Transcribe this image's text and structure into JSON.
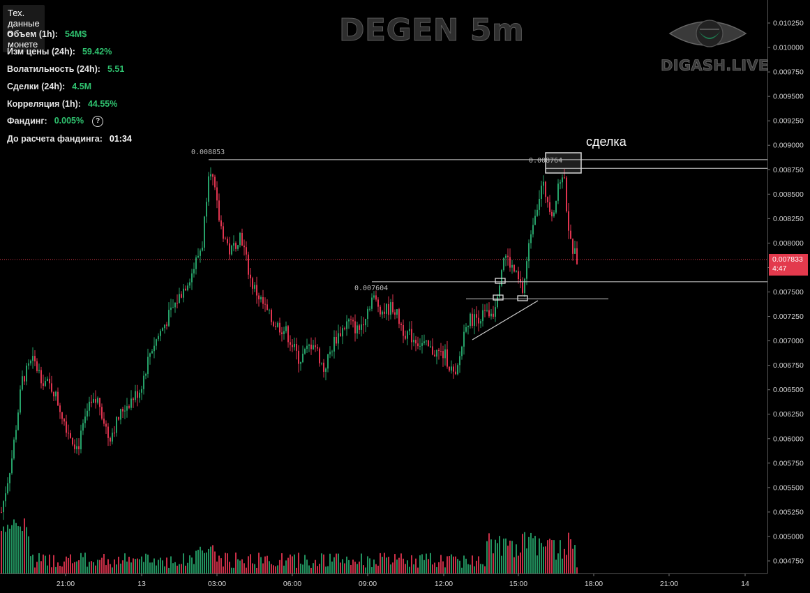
{
  "info_panel": {
    "header": "Тех. данные о монете",
    "rows": [
      {
        "label": "Объем (1h):",
        "value": "54M$"
      },
      {
        "label": "Изм цены  (24h):",
        "value": "59.42%"
      },
      {
        "label": "Волатильность  (24h):",
        "value": "5.51"
      },
      {
        "label": "Сделки (24h):",
        "value": "4.5M"
      },
      {
        "label": "Корреляция (1h):",
        "value": "44.55%"
      },
      {
        "label": "Фандинг:",
        "value": "0.005%"
      },
      {
        "label": "До расчета фандинга:",
        "value": "01:34"
      }
    ],
    "help_icon": "?"
  },
  "title": "DEGEN 5m",
  "brand": {
    "name": "DIGASH.LIVE",
    "logo_icon": "eye-icon"
  },
  "annotations": {
    "deal_label": "сделка",
    "high_label": "0.008853",
    "deal_box_label": "0.008764",
    "pivot_label": "0.007604"
  },
  "current_price": {
    "value": "0.007833",
    "countdown": "4:47"
  },
  "colors": {
    "up": "#26a269",
    "down": "#e0344f",
    "price_tag": "#e33a4d",
    "background": "#000000"
  },
  "chart_data": {
    "type": "candlestick",
    "title": "DEGEN 5m",
    "timeframe": "5m",
    "y_ticks": [
      "0.010250",
      "0.010000",
      "0.009750",
      "0.009500",
      "0.009250",
      "0.009000",
      "0.008750",
      "0.008500",
      "0.008250",
      "0.008000",
      "0.007750",
      "0.007500",
      "0.007250",
      "0.007000",
      "0.006750",
      "0.006500",
      "0.006250",
      "0.006000",
      "0.005750",
      "0.005500",
      "0.005250",
      "0.005000",
      "0.004750"
    ],
    "ylim": [
      0.0046,
      0.0104
    ],
    "x_ticks": [
      "21:00",
      "13",
      "03:00",
      "06:00",
      "09:00",
      "12:00",
      "15:00",
      "18:00",
      "21:00",
      "14"
    ],
    "price_path": [
      [
        0,
        0.00525
      ],
      [
        0.015,
        0.0058
      ],
      [
        0.03,
        0.0066
      ],
      [
        0.045,
        0.0068
      ],
      [
        0.06,
        0.0066
      ],
      [
        0.075,
        0.0065
      ],
      [
        0.095,
        0.0061
      ],
      [
        0.11,
        0.0059
      ],
      [
        0.125,
        0.0063
      ],
      [
        0.14,
        0.0064
      ],
      [
        0.155,
        0.006
      ],
      [
        0.175,
        0.0063
      ],
      [
        0.2,
        0.0065
      ],
      [
        0.215,
        0.0069
      ],
      [
        0.23,
        0.0071
      ],
      [
        0.245,
        0.0073
      ],
      [
        0.26,
        0.0075
      ],
      [
        0.275,
        0.0077
      ],
      [
        0.29,
        0.008
      ],
      [
        0.3,
        0.00885
      ],
      [
        0.315,
        0.0082
      ],
      [
        0.33,
        0.0079
      ],
      [
        0.345,
        0.0081
      ],
      [
        0.36,
        0.0076
      ],
      [
        0.375,
        0.0074
      ],
      [
        0.39,
        0.0072
      ],
      [
        0.41,
        0.0071
      ],
      [
        0.43,
        0.0068
      ],
      [
        0.45,
        0.007
      ],
      [
        0.465,
        0.0067
      ],
      [
        0.48,
        0.007
      ],
      [
        0.5,
        0.0072
      ],
      [
        0.515,
        0.0071
      ],
      [
        0.535,
        0.00745
      ],
      [
        0.55,
        0.0073
      ],
      [
        0.565,
        0.00735
      ],
      [
        0.58,
        0.0071
      ],
      [
        0.6,
        0.007
      ],
      [
        0.62,
        0.0069
      ],
      [
        0.64,
        0.00685
      ],
      [
        0.655,
        0.0066
      ],
      [
        0.67,
        0.0072
      ],
      [
        0.69,
        0.00725
      ],
      [
        0.71,
        0.0073
      ],
      [
        0.725,
        0.0079
      ],
      [
        0.74,
        0.0077
      ],
      [
        0.752,
        0.0075
      ],
      [
        0.765,
        0.0082
      ],
      [
        0.78,
        0.0086
      ],
      [
        0.795,
        0.0083
      ],
      [
        0.81,
        0.00876
      ],
      [
        0.82,
        0.008
      ],
      [
        0.83,
        0.00783
      ]
    ],
    "levels": [
      {
        "label": "0.008853",
        "y": 0.008853
      },
      {
        "label": "0.008764",
        "y": 0.008764
      },
      {
        "label": "0.007604",
        "y": 0.007604
      },
      {
        "label": "",
        "y": 0.00743
      }
    ],
    "legend": "none",
    "grid": false
  }
}
